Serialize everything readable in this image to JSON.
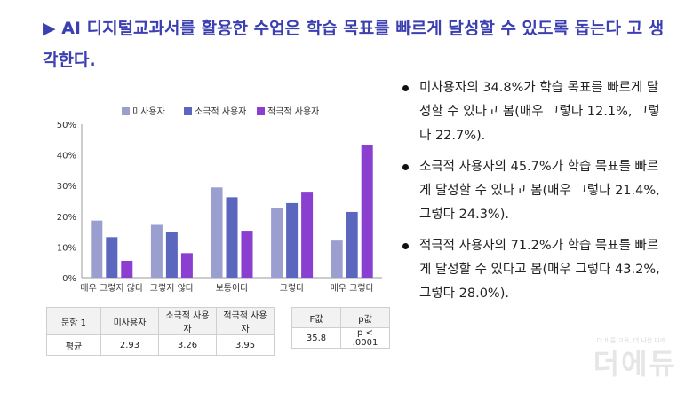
{
  "heading": "▶ AI 디지털교과서를 활용한 수업은 학습 목표를 빠르게 달성할 수 있도록 돕는다 고 생각한다.",
  "colors": {
    "heading": "#3b3fb0",
    "series": [
      "#9b9fd0",
      "#5b67be",
      "#8a3fd0"
    ]
  },
  "chart_data": {
    "type": "bar",
    "categories": [
      "매우 그렇지 않다",
      "그렇지 않다",
      "보통이다",
      "그렇다",
      "매우 그렇다"
    ],
    "series": [
      {
        "name": "미사용자",
        "values": [
          18.6,
          17.2,
          29.4,
          22.7,
          12.1
        ]
      },
      {
        "name": "소극적 사용자",
        "values": [
          13.2,
          15.0,
          26.2,
          24.3,
          21.4
        ]
      },
      {
        "name": "적극적 사용자",
        "values": [
          5.5,
          8.0,
          15.3,
          28.0,
          43.2
        ]
      }
    ],
    "ylim": [
      0,
      50
    ],
    "yticks": [
      "0%",
      "10%",
      "20%",
      "30%",
      "40%",
      "50%"
    ],
    "legend_position": "top",
    "grid": false
  },
  "bullets": [
    "미사용자의 34.8%가 학습 목표를 빠르게 달성할 수 있다고 봄(매우 그렇다 12.1%, 그렇다 22.7%).",
    "소극적 사용자의 45.7%가 학습 목표를 빠르게 달성할 수 있다고 봄(매우 그렇다 21.4%, 그렇다 24.3%).",
    "적극적 사용자의 71.2%가 학습 목표를 빠르게 달성할 수 있다고 봄(매우 그렇다 43.2%, 그렇다 28.0%)."
  ],
  "means_table": {
    "headers": [
      "문항 1",
      "미사용자",
      "소극적 사용자",
      "적극적 사용자"
    ],
    "row": [
      "평균",
      "2.93",
      "3.26",
      "3.95"
    ]
  },
  "tests_table": {
    "headers": [
      "F값",
      "p값"
    ],
    "row": [
      "35.8",
      "p < .0001"
    ]
  },
  "watermark": {
    "sub": "더 바른 교육, 더 나은 미래",
    "main": "더에듀"
  }
}
